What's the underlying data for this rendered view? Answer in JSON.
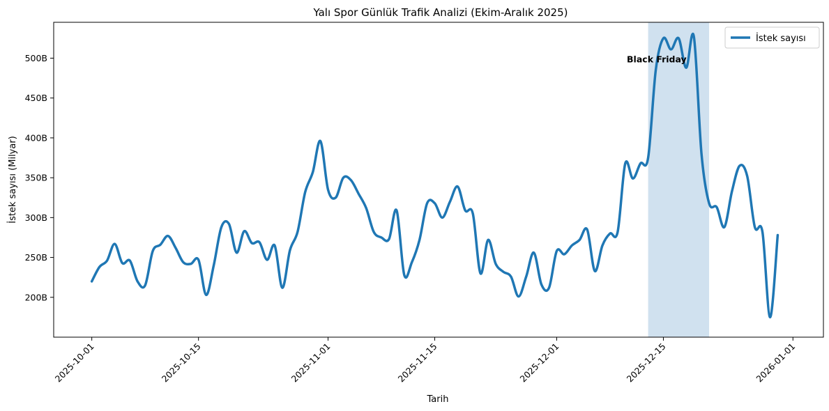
{
  "chart_data": {
    "type": "line",
    "title": "Yalı Spor Günlük Trafik Analizi (Ekim-Aralık 2025)",
    "xlabel": "Tarih",
    "ylabel": "İstek sayısı (Milyar)",
    "xlim": [
      "2025-09-26",
      "2026-01-05"
    ],
    "ylim": [
      150,
      545
    ],
    "x_ticks": [
      "2025-10-01",
      "2025-10-15",
      "2025-11-01",
      "2025-11-15",
      "2025-12-01",
      "2025-12-15",
      "2026-01-01"
    ],
    "y_ticks": [
      200,
      250,
      300,
      350,
      400,
      450,
      500
    ],
    "y_tick_labels": [
      "200B",
      "250B",
      "300B",
      "350B",
      "400B",
      "450B",
      "500B"
    ],
    "legend_position": "top-right",
    "grid": false,
    "colors": {
      "line": "#1f77b4",
      "highlight": "#a9c8e2"
    },
    "highlight": {
      "start": "2025-12-13",
      "end": "2025-12-21"
    },
    "annotations": [
      {
        "text": "Black Friday",
        "x": "2025-12-09",
        "y": 500
      }
    ],
    "series": [
      {
        "name": "İstek sayısı",
        "x_start": "2025-10-01",
        "values": [
          220,
          238,
          246,
          267,
          243,
          246,
          220,
          215,
          258,
          266,
          277,
          262,
          244,
          242,
          247,
          203,
          240,
          288,
          292,
          256,
          283,
          268,
          269,
          247,
          265,
          212,
          259,
          282,
          332,
          357,
          396,
          335,
          325,
          350,
          347,
          330,
          312,
          282,
          275,
          273,
          309,
          228,
          244,
          272,
          318,
          318,
          300,
          320,
          339,
          309,
          305,
          230,
          272,
          242,
          232,
          226,
          201,
          226,
          256,
          216,
          212,
          258,
          254,
          265,
          272,
          285,
          233,
          265,
          280,
          282,
          368,
          349,
          368,
          375,
          485,
          525,
          511,
          525,
          488,
          527,
          380,
          318,
          313,
          288,
          333,
          365,
          352,
          288,
          282,
          175,
          278
        ]
      }
    ]
  }
}
